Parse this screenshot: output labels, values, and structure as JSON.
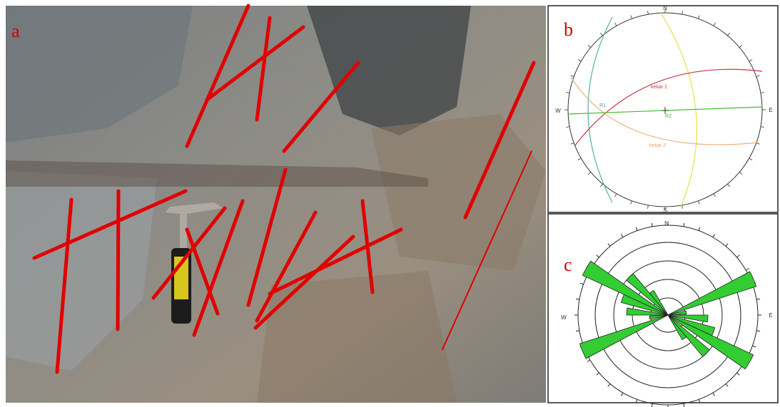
{
  "panels": {
    "a": {
      "label": "a"
    },
    "b": {
      "label": "b",
      "directions": {
        "n": "N",
        "s": "S",
        "e": "E",
        "w": "W"
      },
      "labels": [
        "kekar 1",
        "kekar 2",
        "R1",
        "R2"
      ]
    },
    "c": {
      "label": "c",
      "directions": {
        "n": "N",
        "e": "E",
        "w": "W"
      }
    }
  }
}
